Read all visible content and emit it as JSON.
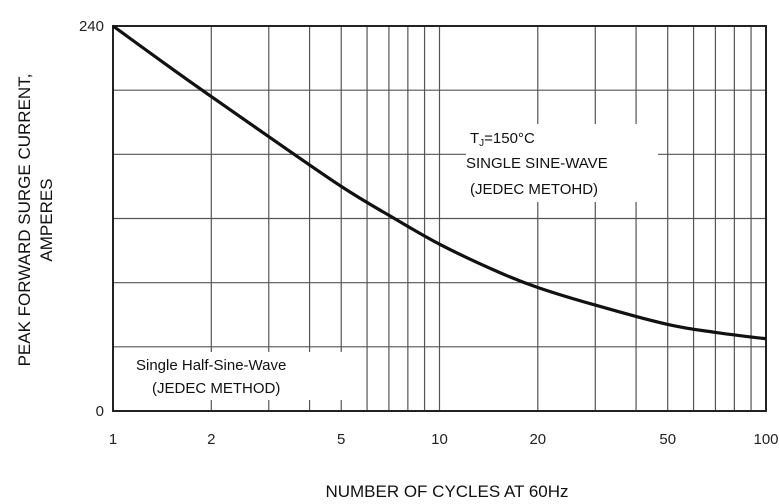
{
  "chart_data": {
    "type": "line",
    "xscale": "log",
    "xlim": [
      1,
      100
    ],
    "ylim": [
      0,
      240
    ],
    "xlabel": "NUMBER OF CYCLES AT 60Hz",
    "ylabel_line1": "PEAK FORWARD SURGE CURRENT,",
    "ylabel_line2": "AMPERES",
    "x_tick_labels": [
      "1",
      "2",
      "5",
      "10",
      "20",
      "50",
      "100"
    ],
    "x_tick_values": [
      1,
      2,
      5,
      10,
      20,
      50,
      100
    ],
    "y_tick_labels": [
      "240",
      "0"
    ],
    "y_tick_values": [
      240,
      0
    ],
    "grid": true,
    "series": [
      {
        "x": [
          1,
          1.5,
          2,
          3,
          5,
          7,
          10,
          15,
          20,
          30,
          50,
          70,
          100
        ],
        "values": [
          240,
          214,
          196,
          171,
          140,
          122,
          104,
          87,
          77,
          66,
          54,
          49,
          45
        ]
      }
    ],
    "annotations": {
      "condition_line1": "T",
      "condition_sub": "J",
      "condition_line1_rest": "=150°C",
      "condition_line2": "SINGLE SINE-WAVE",
      "condition_line3": "(JEDEC METOHD)",
      "method_line1": "Single Half-Sine-Wave",
      "method_line2": "(JEDEC METHOD)"
    },
    "colors": {
      "line": "#111111",
      "grid": "#555555",
      "axis": "#222222",
      "background": "#ffffff"
    }
  }
}
